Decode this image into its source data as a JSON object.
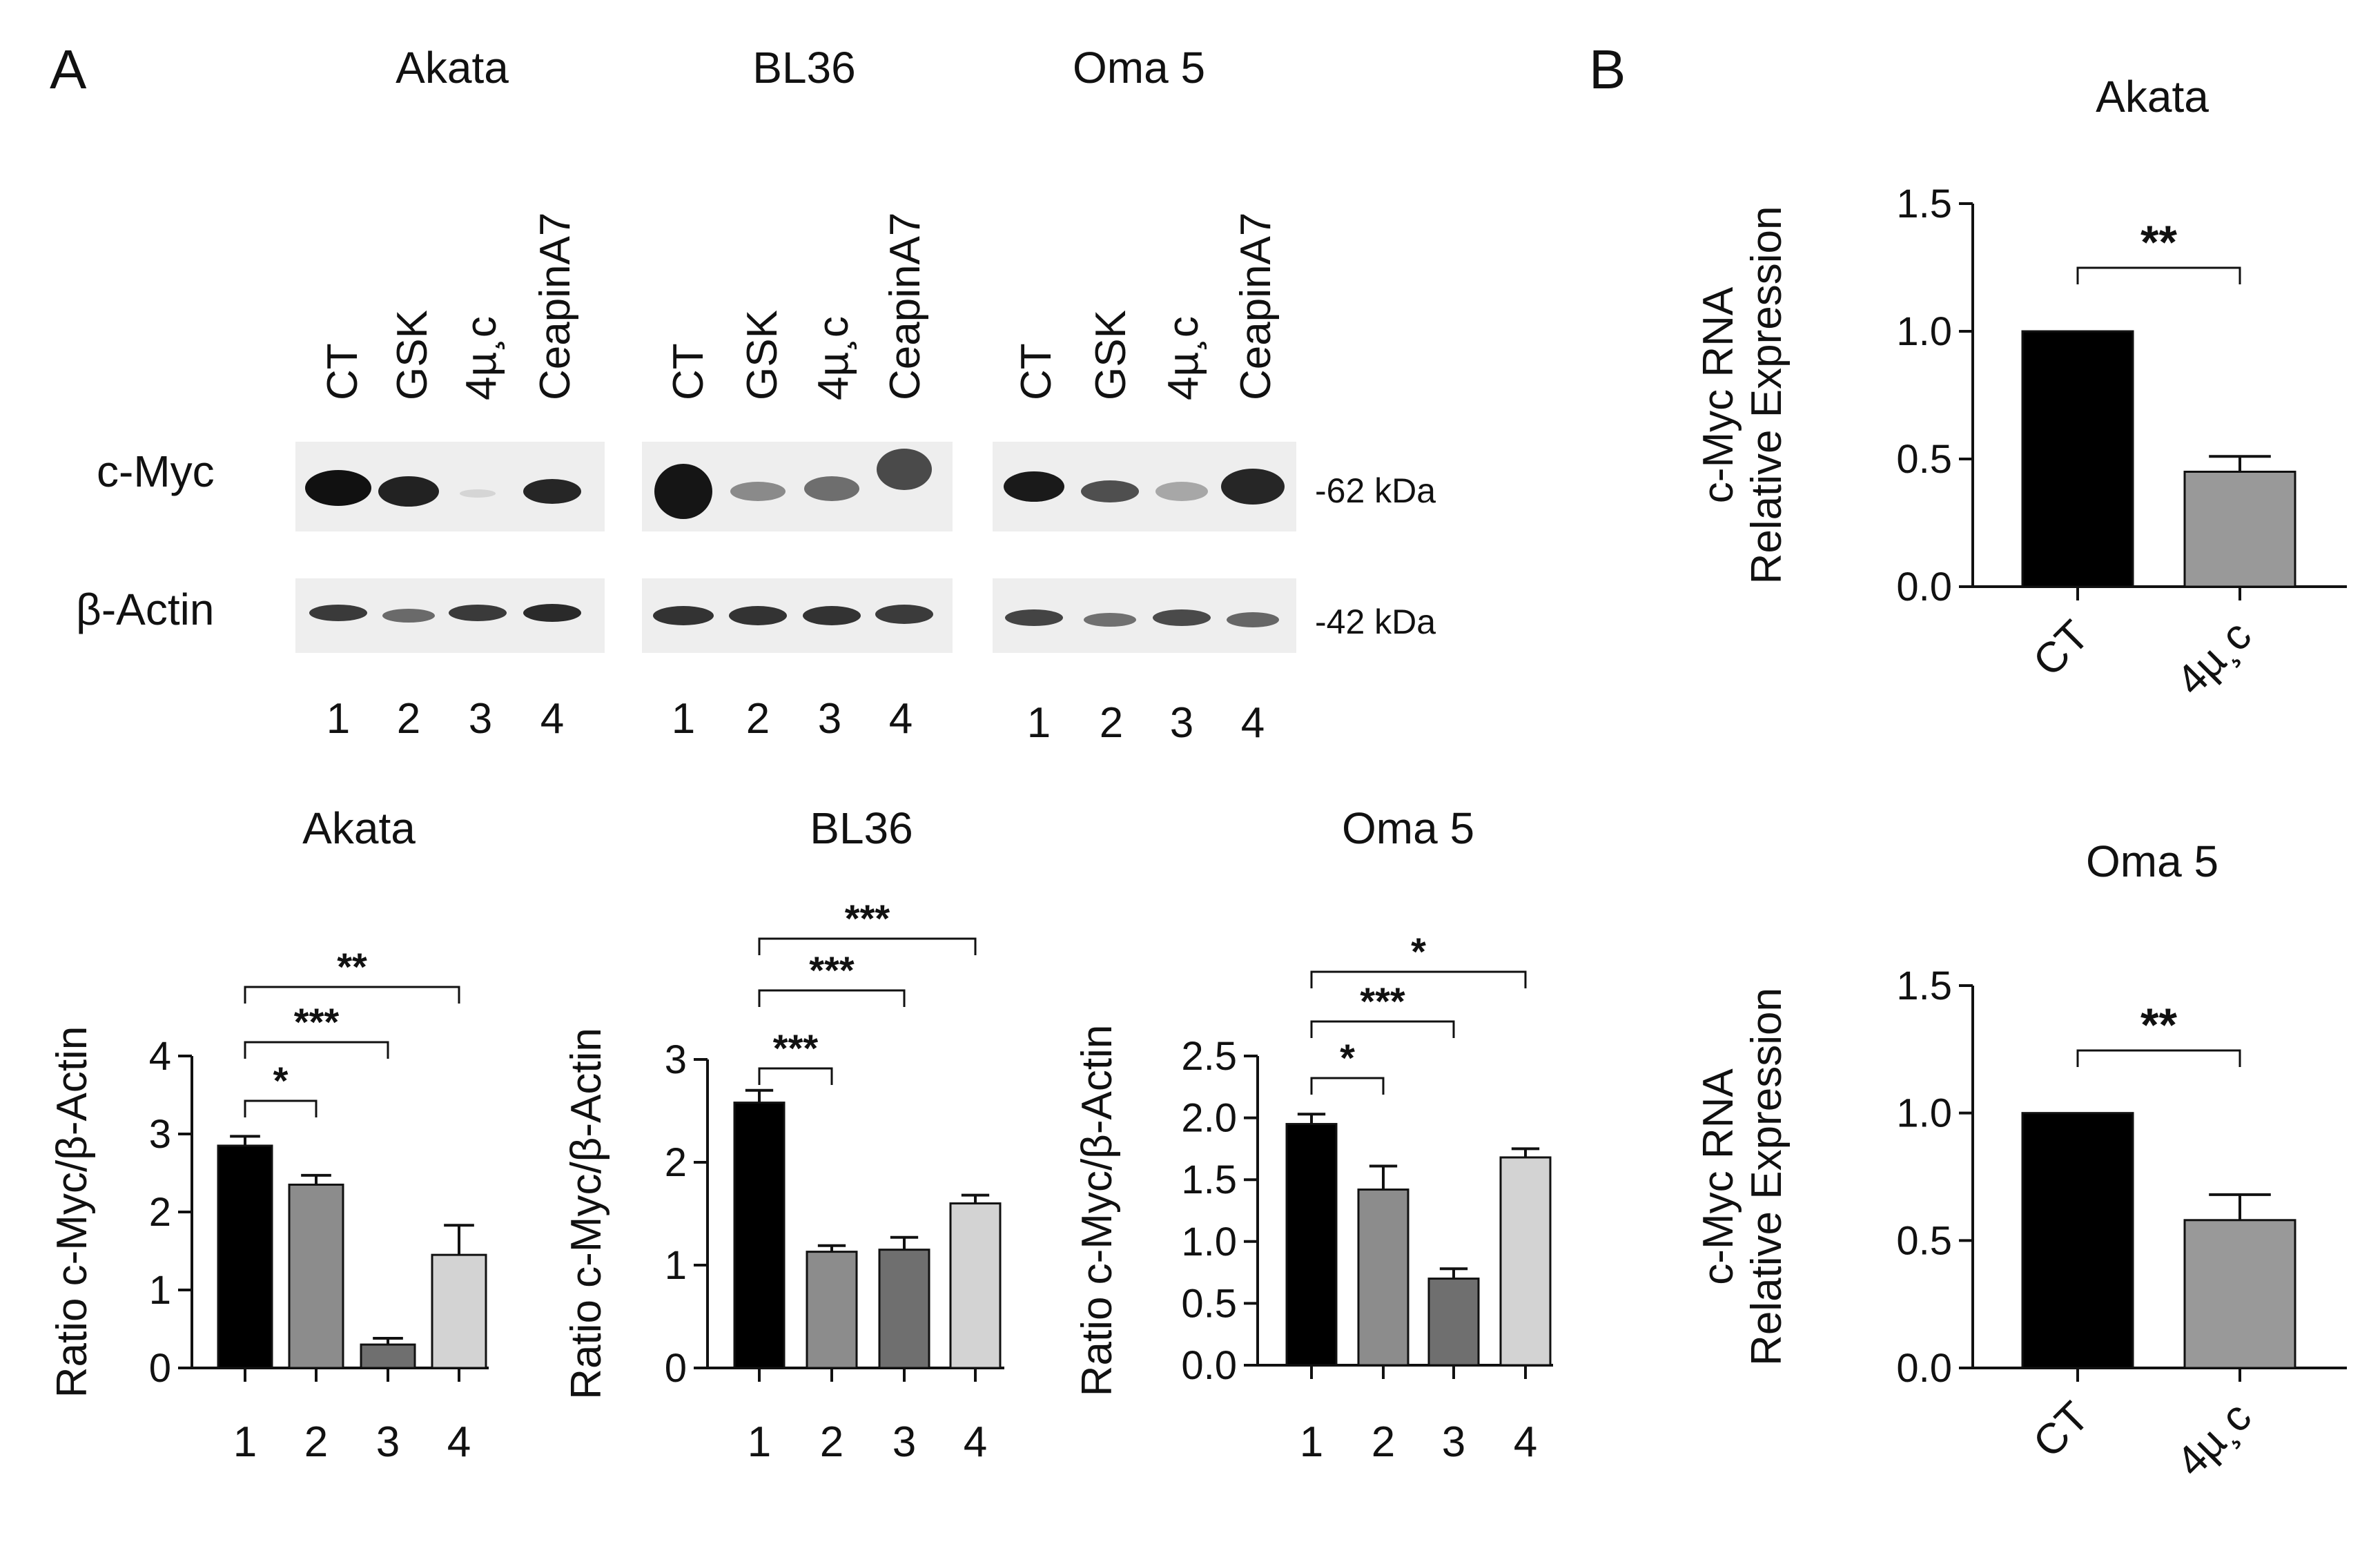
{
  "panel_labels": {
    "a": "A",
    "b": "B"
  },
  "blots": {
    "cell_lines": [
      "Akata",
      "BL36",
      "Oma 5"
    ],
    "lanes": [
      "CT",
      "GSK",
      "4µ¸c",
      "CeapinA7"
    ],
    "lane_numbers": [
      "1",
      "2",
      "3",
      "4"
    ],
    "rows": [
      "c-Myc",
      "β-Actin"
    ],
    "markers": [
      "-62 kDa",
      "-42 kDa"
    ]
  },
  "chart_data": [
    {
      "type": "bar",
      "title": "Akata",
      "categories": [
        "1",
        "2",
        "3",
        "4"
      ],
      "values": [
        2.85,
        2.35,
        0.3,
        1.45
      ],
      "errors": [
        0.12,
        0.12,
        0.08,
        0.38
      ],
      "colors": [
        "#000000",
        "#8c8c8c",
        "#6f6f6f",
        "#d3d3d3"
      ],
      "ylabel": "Ratio c-Myc/β-Actin",
      "ylim": [
        0,
        4
      ],
      "yticks": [
        "0",
        "1",
        "2",
        "3",
        "4"
      ],
      "comparisons": [
        {
          "from": "1",
          "to": "2",
          "label": "*"
        },
        {
          "from": "1",
          "to": "3",
          "label": "***"
        },
        {
          "from": "1",
          "to": "4",
          "label": "**"
        }
      ]
    },
    {
      "type": "bar",
      "title": "BL36",
      "categories": [
        "1",
        "2",
        "3",
        "4"
      ],
      "values": [
        2.58,
        1.13,
        1.15,
        1.6
      ],
      "errors": [
        0.12,
        0.06,
        0.12,
        0.08
      ],
      "colors": [
        "#000000",
        "#8c8c8c",
        "#6f6f6f",
        "#d3d3d3"
      ],
      "ylabel": "Ratio c-Myc/β-Actin",
      "ylim": [
        0,
        3
      ],
      "yticks": [
        "0",
        "1",
        "2",
        "3"
      ],
      "comparisons": [
        {
          "from": "1",
          "to": "2",
          "label": "***"
        },
        {
          "from": "1",
          "to": "3",
          "label": "***"
        },
        {
          "from": "1",
          "to": "4",
          "label": "***"
        }
      ]
    },
    {
      "type": "bar",
      "title": "Oma 5",
      "categories": [
        "1",
        "2",
        "3",
        "4"
      ],
      "values": [
        1.95,
        1.42,
        0.7,
        1.68
      ],
      "errors": [
        0.08,
        0.19,
        0.08,
        0.07
      ],
      "colors": [
        "#000000",
        "#8c8c8c",
        "#6f6f6f",
        "#d3d3d3"
      ],
      "ylabel": "Ratio c-Myc/β-Actin",
      "ylim": [
        0,
        2.5
      ],
      "yticks": [
        "0.0",
        "0.5",
        "1.0",
        "1.5",
        "2.0",
        "2.5"
      ],
      "comparisons": [
        {
          "from": "1",
          "to": "2",
          "label": "*"
        },
        {
          "from": "1",
          "to": "3",
          "label": "***"
        },
        {
          "from": "1",
          "to": "4",
          "label": "*"
        }
      ]
    },
    {
      "type": "bar",
      "title": "Akata",
      "categories": [
        "CT",
        "4µ¸c"
      ],
      "values": [
        1.0,
        0.45
      ],
      "errors": [
        0,
        0.06
      ],
      "colors": [
        "#000000",
        "#999999"
      ],
      "ylabel": "c-Myc RNA Relative Expression",
      "ylabel_lines": [
        "c-Myc RNA",
        "Relative Expression"
      ],
      "ylim": [
        0,
        1.5
      ],
      "yticks": [
        "0.0",
        "0.5",
        "1.0",
        "1.5"
      ],
      "comparisons": [
        {
          "from": "CT",
          "to": "4µ¸c",
          "label": "**"
        }
      ]
    },
    {
      "type": "bar",
      "title": "Oma 5",
      "categories": [
        "CT",
        "4µ¸c"
      ],
      "values": [
        1.0,
        0.58
      ],
      "errors": [
        0,
        0.1
      ],
      "colors": [
        "#000000",
        "#999999"
      ],
      "ylabel": "c-Myc RNA Relative Expression",
      "ylabel_lines": [
        "c-Myc RNA",
        "Relative Expression"
      ],
      "ylim": [
        0,
        1.5
      ],
      "yticks": [
        "0.0",
        "0.5",
        "1.0",
        "1.5"
      ],
      "comparisons": [
        {
          "from": "CT",
          "to": "4µ¸c",
          "label": "**"
        }
      ]
    }
  ]
}
